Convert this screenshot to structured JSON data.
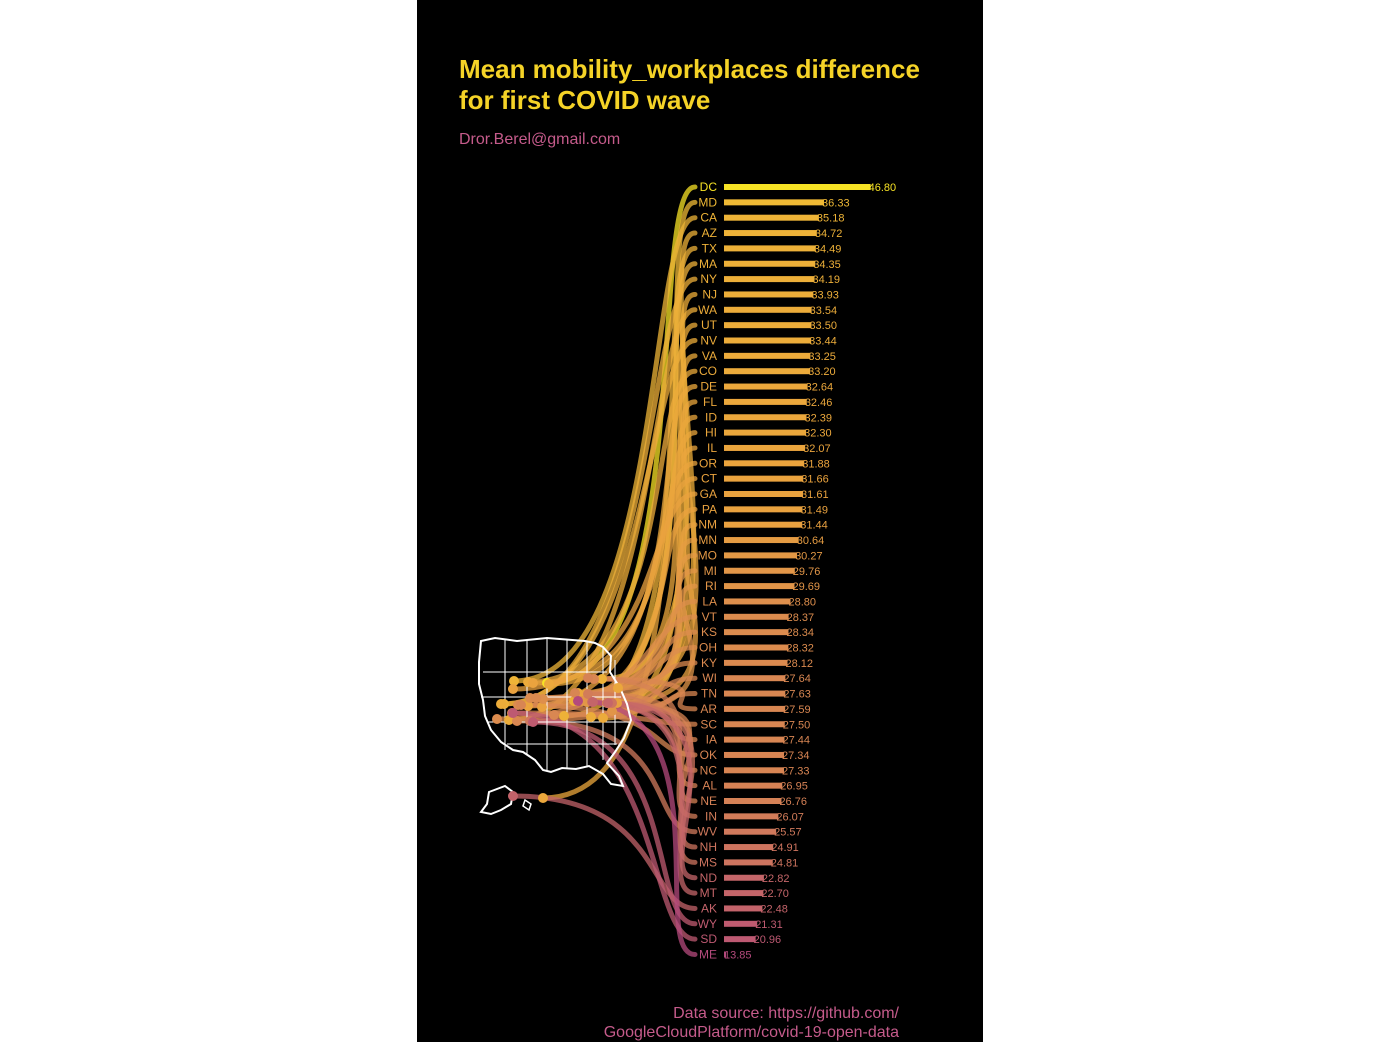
{
  "title": "Mean mobility_workplaces difference\nfor first COVID wave",
  "subtitle": "Dror.Berel@gmail.com",
  "caption_line1": "Data source: https://github.com/",
  "caption_line2": "GoogleCloudPlatform/covid-19-open-data",
  "colors": {
    "high": "#f7e225",
    "mid": "#eba53d",
    "low": "#b44a7c",
    "map_stroke": "#ffffff"
  },
  "chart_data": {
    "type": "bar",
    "orientation": "horizontal",
    "categories": [
      "DC",
      "MD",
      "CA",
      "AZ",
      "TX",
      "MA",
      "NY",
      "NJ",
      "WA",
      "UT",
      "NV",
      "VA",
      "CO",
      "DE",
      "FL",
      "ID",
      "HI",
      "IL",
      "OR",
      "CT",
      "GA",
      "PA",
      "NM",
      "MN",
      "MO",
      "MI",
      "RI",
      "LA",
      "VT",
      "KS",
      "OH",
      "KY",
      "WI",
      "TN",
      "AR",
      "SC",
      "IA",
      "OK",
      "NC",
      "AL",
      "NE",
      "IN",
      "WV",
      "NH",
      "MS",
      "ND",
      "MT",
      "AK",
      "WY",
      "SD",
      "ME"
    ],
    "values": [
      46.8,
      36.33,
      35.18,
      34.72,
      34.49,
      34.35,
      34.19,
      33.93,
      33.54,
      33.5,
      33.44,
      33.25,
      33.2,
      32.64,
      32.46,
      32.39,
      32.3,
      32.07,
      31.88,
      31.66,
      31.61,
      31.49,
      31.44,
      30.64,
      30.27,
      29.76,
      29.69,
      28.8,
      28.37,
      28.34,
      28.32,
      28.12,
      27.64,
      27.63,
      27.59,
      27.5,
      27.44,
      27.34,
      27.33,
      26.95,
      26.76,
      26.07,
      25.57,
      24.91,
      24.81,
      22.82,
      22.7,
      22.48,
      21.31,
      20.96,
      13.85
    ],
    "value_format": "2 decimals",
    "map": "US states"
  }
}
